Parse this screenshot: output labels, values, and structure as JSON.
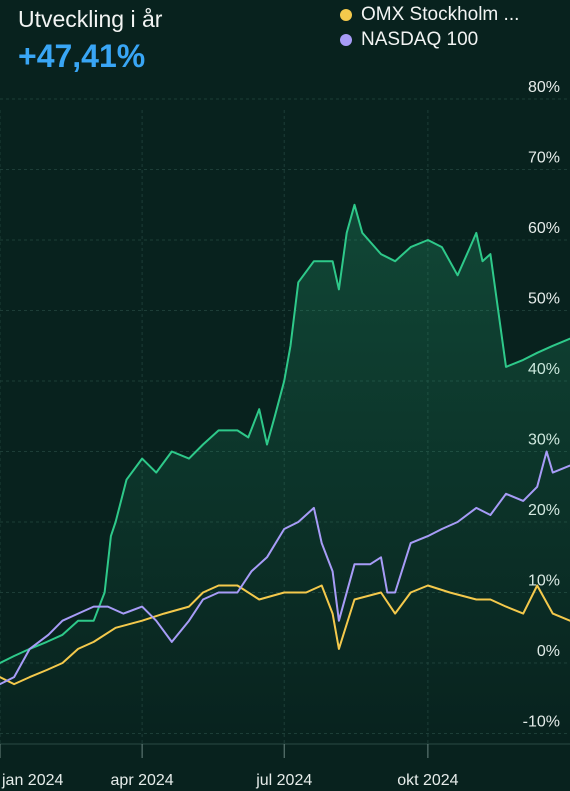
{
  "header": {
    "title": "Utveckling i år",
    "value": "+47,41%"
  },
  "legend": [
    {
      "name": "OMX Stockholm ...",
      "color": "#f4c94c"
    },
    {
      "name": "NASDAQ 100",
      "color": "#a79cf7"
    }
  ],
  "chart_data": {
    "type": "line",
    "ylim": [
      -10,
      82
    ],
    "y_ticks": [
      {
        "label": "80%",
        "value": 80
      },
      {
        "label": "70%",
        "value": 70
      },
      {
        "label": "60%",
        "value": 60
      },
      {
        "label": "50%",
        "value": 50
      },
      {
        "label": "40%",
        "value": 40
      },
      {
        "label": "30%",
        "value": 30
      },
      {
        "label": "20%",
        "value": 20
      },
      {
        "label": "10%",
        "value": 10
      },
      {
        "label": "0%",
        "value": 0
      },
      {
        "label": "-10%",
        "value": -10
      }
    ],
    "xlim": [
      "2024-01-01",
      "2024-12-31"
    ],
    "x_ticks": [
      {
        "label": "jan 2024",
        "date": "2024-01-01"
      },
      {
        "label": "apr 2024",
        "date": "2024-04-01"
      },
      {
        "label": "jul 2024",
        "date": "2024-07-01"
      },
      {
        "label": "okt 2024",
        "date": "2024-10-01"
      }
    ],
    "grid": true,
    "legend_position": "top-right",
    "colors": {
      "main": "#2ec98a",
      "omx": "#f4c94c",
      "nasdaq": "#a79cf7",
      "grid": "#1d3d37",
      "axis_text": "#e6ecea",
      "background": "#08221e"
    },
    "series": [
      {
        "key": "main",
        "x": [
          "2024-01-01",
          "2024-01-10",
          "2024-01-20",
          "2024-01-31",
          "2024-02-10",
          "2024-02-20",
          "2024-03-01",
          "2024-03-08",
          "2024-03-12",
          "2024-03-15",
          "2024-03-22",
          "2024-04-01",
          "2024-04-10",
          "2024-04-20",
          "2024-05-01",
          "2024-05-10",
          "2024-05-20",
          "2024-06-01",
          "2024-06-08",
          "2024-06-15",
          "2024-06-20",
          "2024-06-25",
          "2024-07-01",
          "2024-07-05",
          "2024-07-10",
          "2024-07-20",
          "2024-08-01",
          "2024-08-05",
          "2024-08-10",
          "2024-08-15",
          "2024-08-20",
          "2024-09-01",
          "2024-09-10",
          "2024-09-20",
          "2024-10-01",
          "2024-10-10",
          "2024-10-20",
          "2024-10-28",
          "2024-11-01",
          "2024-11-05",
          "2024-11-10",
          "2024-11-20",
          "2024-12-01",
          "2024-12-10",
          "2024-12-20",
          "2024-12-31"
        ],
        "y": [
          0,
          1,
          2,
          3,
          4,
          6,
          6,
          10,
          18,
          20,
          26,
          29,
          27,
          30,
          29,
          31,
          33,
          33,
          32,
          36,
          31,
          35,
          40,
          45,
          54,
          57,
          57,
          53,
          61,
          65,
          61,
          58,
          57,
          59,
          60,
          59,
          55,
          59,
          61,
          57,
          58,
          42,
          43,
          44,
          45,
          46
        ]
      },
      {
        "key": "omx",
        "x": [
          "2024-01-01",
          "2024-01-10",
          "2024-01-20",
          "2024-01-31",
          "2024-02-10",
          "2024-02-20",
          "2024-03-01",
          "2024-03-15",
          "2024-04-01",
          "2024-04-15",
          "2024-05-01",
          "2024-05-10",
          "2024-05-20",
          "2024-06-01",
          "2024-06-15",
          "2024-07-01",
          "2024-07-15",
          "2024-07-25",
          "2024-08-01",
          "2024-08-05",
          "2024-08-15",
          "2024-09-01",
          "2024-09-10",
          "2024-09-20",
          "2024-10-01",
          "2024-10-15",
          "2024-11-01",
          "2024-11-10",
          "2024-11-20",
          "2024-12-01",
          "2024-12-10",
          "2024-12-20",
          "2024-12-31"
        ],
        "y": [
          -2,
          -3,
          -2,
          -1,
          0,
          2,
          3,
          5,
          6,
          7,
          8,
          10,
          11,
          11,
          9,
          10,
          10,
          11,
          7,
          2,
          9,
          10,
          7,
          10,
          11,
          10,
          9,
          9,
          8,
          7,
          11,
          7,
          6
        ]
      },
      {
        "key": "nasdaq",
        "x": [
          "2024-01-01",
          "2024-01-10",
          "2024-01-20",
          "2024-02-01",
          "2024-02-10",
          "2024-02-20",
          "2024-03-01",
          "2024-03-10",
          "2024-03-20",
          "2024-04-01",
          "2024-04-10",
          "2024-04-20",
          "2024-05-01",
          "2024-05-10",
          "2024-05-20",
          "2024-06-01",
          "2024-06-10",
          "2024-06-20",
          "2024-07-01",
          "2024-07-10",
          "2024-07-20",
          "2024-07-25",
          "2024-08-01",
          "2024-08-05",
          "2024-08-15",
          "2024-08-25",
          "2024-09-01",
          "2024-09-05",
          "2024-09-10",
          "2024-09-20",
          "2024-10-01",
          "2024-10-10",
          "2024-10-20",
          "2024-11-01",
          "2024-11-10",
          "2024-11-20",
          "2024-12-01",
          "2024-12-10",
          "2024-12-16",
          "2024-12-20",
          "2024-12-31"
        ],
        "y": [
          -3,
          -2,
          2,
          4,
          6,
          7,
          8,
          8,
          7,
          8,
          6,
          3,
          6,
          9,
          10,
          10,
          13,
          15,
          19,
          20,
          22,
          17,
          13,
          6,
          14,
          14,
          15,
          10,
          10,
          17,
          18,
          19,
          20,
          22,
          21,
          24,
          23,
          25,
          30,
          27,
          28
        ]
      }
    ]
  }
}
